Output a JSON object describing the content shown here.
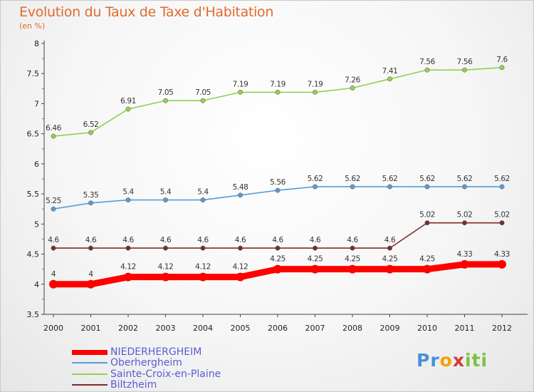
{
  "title": "Evolution du Taux de Taxe d'Habitation",
  "subtitle": "(en %)",
  "logo": {
    "p1": "Pr",
    "p2": "o",
    "p3": "x",
    "p4": "iti"
  },
  "chart_data": {
    "type": "line",
    "x": [
      2000,
      2001,
      2002,
      2003,
      2004,
      2005,
      2006,
      2007,
      2008,
      2009,
      2010,
      2011,
      2012
    ],
    "ylim": [
      3.5,
      8
    ],
    "yticks": [
      "3.5",
      "4",
      "4.5",
      "5",
      "5.5",
      "6",
      "6.5",
      "7",
      "7.5",
      "8"
    ],
    "grid": false,
    "legend_position": "bottom-left",
    "series": [
      {
        "name": "NIEDERHERGHEIM",
        "color": "#ff0000",
        "values": [
          4,
          4,
          4.12,
          4.12,
          4.12,
          4.12,
          4.25,
          4.25,
          4.25,
          4.25,
          4.25,
          4.33,
          4.33
        ],
        "labels": [
          "4",
          "4",
          "4.12",
          "4.12",
          "4.12",
          "4.12",
          "4.25",
          "4.25",
          "4.25",
          "4.25",
          "4.25",
          "4.33",
          "4.33"
        ]
      },
      {
        "name": "Oberhergheim",
        "color": "#5b9bd5",
        "values": [
          5.25,
          5.35,
          5.4,
          5.4,
          5.4,
          5.48,
          5.56,
          5.62,
          5.62,
          5.62,
          5.62,
          5.62,
          5.62
        ],
        "labels": [
          "5.25",
          "5.35",
          "5.4",
          "5.4",
          "5.4",
          "5.48",
          "5.56",
          "5.62",
          "5.62",
          "5.62",
          "5.62",
          "5.62",
          "5.62"
        ]
      },
      {
        "name": "Sainte-Croix-en-Plaine",
        "color": "#92d050",
        "values": [
          6.46,
          6.52,
          6.91,
          7.05,
          7.05,
          7.19,
          7.19,
          7.19,
          7.26,
          7.41,
          7.56,
          7.56,
          7.6
        ],
        "labels": [
          "6.46",
          "6.52",
          "6.91",
          "7.05",
          "7.05",
          "7.19",
          "7.19",
          "7.19",
          "7.26",
          "7.41",
          "7.56",
          "7.56",
          "7.6"
        ]
      },
      {
        "name": "Biltzheim",
        "color": "#7b2c2c",
        "values": [
          4.6,
          4.6,
          4.6,
          4.6,
          4.6,
          4.6,
          4.6,
          4.6,
          4.6,
          4.6,
          5.02,
          5.02,
          5.02
        ],
        "labels": [
          "4.6",
          "4.6",
          "4.6",
          "4.6",
          "4.6",
          "4.6",
          "4.6",
          "4.6",
          "4.6",
          "4.6",
          "5.02",
          "5.02",
          "5.02"
        ]
      }
    ]
  }
}
